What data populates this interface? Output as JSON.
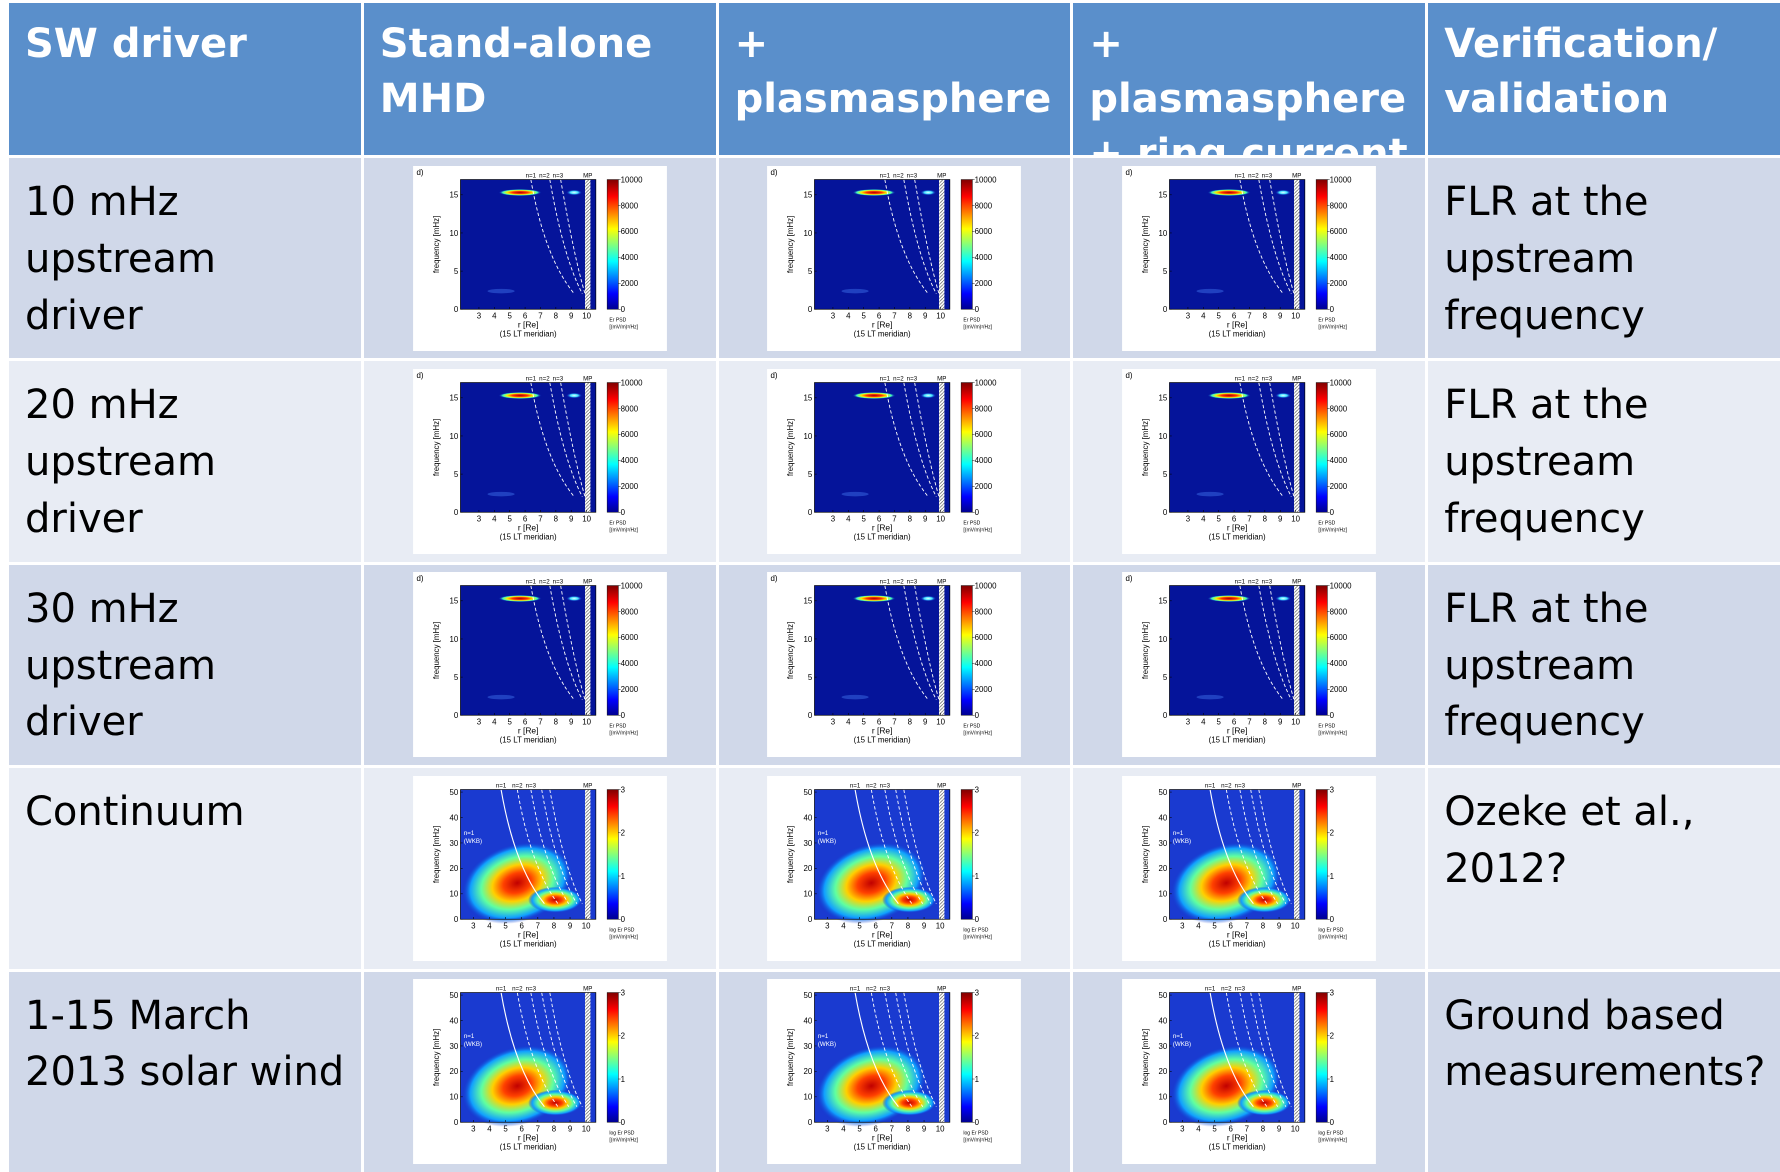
{
  "header": [
    "SW driver",
    "Stand-alone MHD",
    "+ plasmasphere",
    "+ plasmasphere + ring current",
    "Verification/ validation"
  ],
  "rows": [
    {
      "driver": "10 mHz upstream driver",
      "validation": "FLR at the upstream frequency",
      "figure": {
        "panel": "d)",
        "ylabel": "frequency [mHz]",
        "xlabel": "r [Re]",
        "xsub": "(15 LT meridian)",
        "xlim": [
          1.8,
          10.6
        ],
        "xticks": [
          3,
          4,
          5,
          6,
          7,
          8,
          9,
          10
        ],
        "ylim": [
          0,
          17
        ],
        "yticks": [
          0,
          5,
          10,
          15
        ],
        "clim": [
          0,
          10000
        ],
        "cticks": [
          0,
          2000,
          4000,
          6000,
          8000,
          10000
        ],
        "clabel": [
          "Er PSD",
          "[(mV/m)²/Hz]"
        ],
        "modes": [
          "n=1",
          "n=2",
          "n=3",
          "MP"
        ]
      }
    },
    {
      "driver": "20 mHz upstream driver",
      "validation": "FLR at the upstream frequency",
      "figure": {
        "panel": "d)",
        "ylabel": "frequency [mHz]",
        "xlabel": "r [Re]",
        "xsub": "(15 LT meridian)",
        "xlim": [
          1.8,
          10.6
        ],
        "xticks": [
          3,
          4,
          5,
          6,
          7,
          8,
          9,
          10
        ],
        "ylim": [
          0,
          17
        ],
        "yticks": [
          0,
          5,
          10,
          15
        ],
        "clim": [
          0,
          10000
        ],
        "cticks": [
          0,
          2000,
          4000,
          6000,
          8000,
          10000
        ],
        "clabel": [
          "Er PSD",
          "[(mV/m)²/Hz]"
        ],
        "modes": [
          "n=1",
          "n=2",
          "n=3",
          "MP"
        ]
      }
    },
    {
      "driver": "30 mHz upstream driver",
      "validation": "FLR at the upstream frequency",
      "figure": {
        "panel": "d)",
        "ylabel": "frequency [mHz]",
        "xlabel": "r [Re]",
        "xsub": "(15 LT meridian)",
        "xlim": [
          1.8,
          10.6
        ],
        "xticks": [
          3,
          4,
          5,
          6,
          7,
          8,
          9,
          10
        ],
        "ylim": [
          0,
          17
        ],
        "yticks": [
          0,
          5,
          10,
          15
        ],
        "clim": [
          0,
          10000
        ],
        "cticks": [
          0,
          2000,
          4000,
          6000,
          8000,
          10000
        ],
        "clabel": [
          "Er PSD",
          "[(mV/m)²/Hz]"
        ],
        "modes": [
          "n=1",
          "n=2",
          "n=3",
          "MP"
        ]
      }
    },
    {
      "driver": "Continuum",
      "validation": "Ozeke et al., 2012?",
      "figure": {
        "ylabel": "frequency [mHz]",
        "xlabel": "r [Re]",
        "xsub": "(15 LT meridian)",
        "xlim": [
          2.2,
          10.6
        ],
        "xticks": [
          3,
          4,
          5,
          6,
          7,
          8,
          9,
          10
        ],
        "ylim": [
          0,
          51
        ],
        "yticks": [
          0,
          10,
          20,
          30,
          40,
          50
        ],
        "clim": [
          0,
          3
        ],
        "cticks": [
          0,
          1,
          2,
          3
        ],
        "clabel": [
          "log Er PSD",
          "[(mV/m)²/Hz]"
        ],
        "modes": [
          "n=1",
          "n=2",
          "n=3",
          "MP"
        ],
        "wkb": [
          "n=1",
          "(WKB)"
        ]
      }
    },
    {
      "driver": "1-15 March 2013 solar wind",
      "validation": "Ground based measurements?",
      "figure": {
        "ylabel": "frequency [mHz]",
        "xlabel": "r [Re]",
        "xsub": "(15 LT meridian)",
        "xlim": [
          2.2,
          10.6
        ],
        "xticks": [
          3,
          4,
          5,
          6,
          7,
          8,
          9,
          10
        ],
        "ylim": [
          0,
          51
        ],
        "yticks": [
          0,
          10,
          20,
          30,
          40,
          50
        ],
        "clim": [
          0,
          3
        ],
        "cticks": [
          0,
          1,
          2,
          3
        ],
        "clabel": [
          "log Er PSD",
          "[(mV/m)²/Hz]"
        ],
        "modes": [
          "n=1",
          "n=2",
          "n=3",
          "MP"
        ],
        "wkb": [
          "n=1",
          "(WKB)"
        ]
      }
    }
  ]
}
